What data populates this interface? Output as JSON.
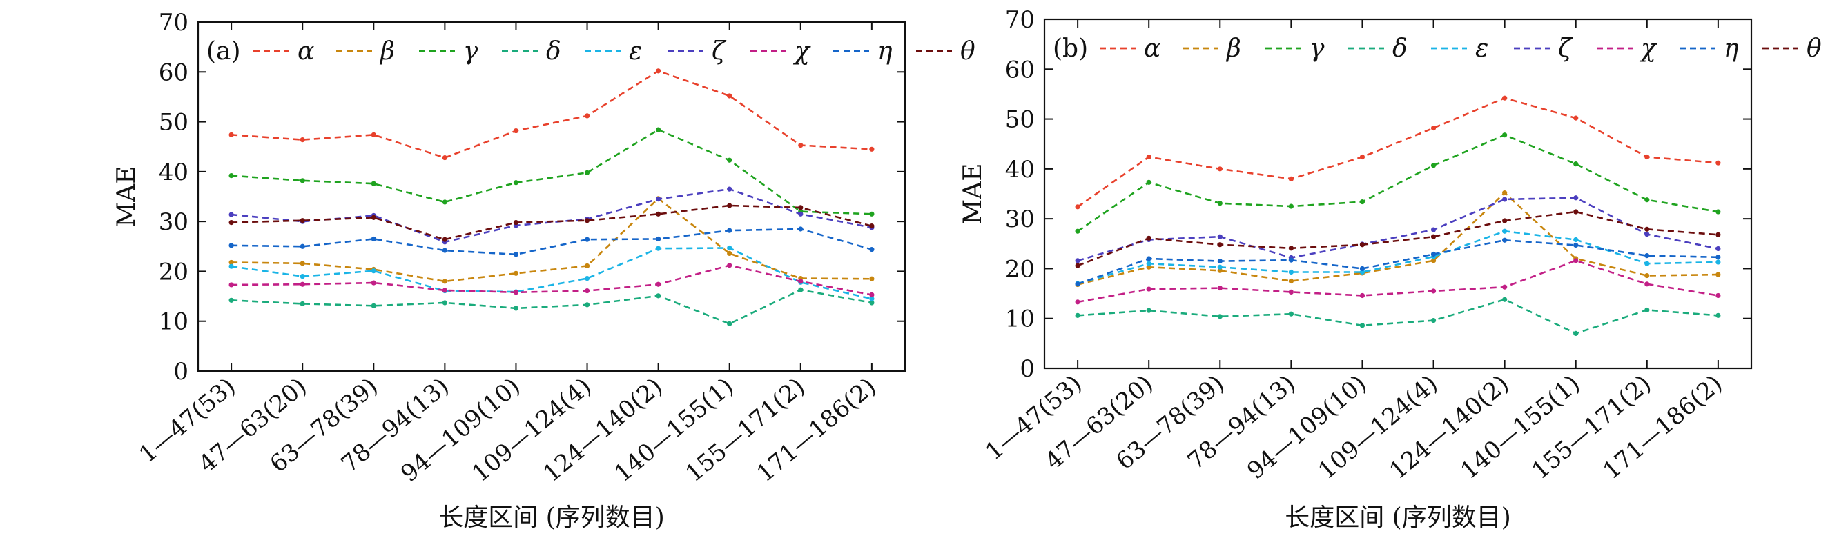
{
  "chart_data": [
    {
      "type": "line",
      "panel_label": "(a)",
      "xlabel": "长度区间 (序列数目)",
      "ylabel": "MAE",
      "ylim": [
        0,
        70
      ],
      "yticks": [
        0,
        10,
        20,
        30,
        40,
        50,
        60,
        70
      ],
      "grid": false,
      "legend_position": "top",
      "categories": [
        "1—47(53)",
        "47—63(20)",
        "63—78(39)",
        "78—94(13)",
        "94—109(10)",
        "109—124(4)",
        "124—140(2)",
        "140—155(1)",
        "155—171(2)",
        "171—186(2)"
      ],
      "series": [
        {
          "name": "α",
          "color": "#e8412c",
          "values": [
            47.4,
            46.4,
            47.4,
            42.8,
            48.2,
            51.2,
            60.2,
            55.2,
            45.3,
            44.5
          ]
        },
        {
          "name": "β",
          "color": "#c8860e",
          "values": [
            21.8,
            21.6,
            20.4,
            18.0,
            19.6,
            21.1,
            34.6,
            23.6,
            18.6,
            18.5
          ]
        },
        {
          "name": "γ",
          "color": "#1fa31f",
          "values": [
            39.2,
            38.2,
            37.6,
            33.9,
            37.8,
            39.8,
            48.4,
            42.3,
            32.0,
            31.5
          ]
        },
        {
          "name": "δ",
          "color": "#1aab7c",
          "values": [
            14.2,
            13.5,
            13.1,
            13.7,
            12.6,
            13.3,
            15.1,
            9.5,
            16.3,
            13.7
          ]
        },
        {
          "name": "ε",
          "color": "#1ab4e6",
          "values": [
            21.0,
            19.0,
            20.1,
            16.1,
            15.9,
            18.6,
            24.6,
            24.7,
            17.8,
            14.5
          ]
        },
        {
          "name": "ζ",
          "color": "#4b3fbf",
          "values": [
            31.4,
            30.0,
            31.2,
            25.9,
            29.2,
            30.5,
            34.5,
            36.5,
            31.5,
            28.8
          ]
        },
        {
          "name": "χ",
          "color": "#c21f86",
          "values": [
            17.3,
            17.4,
            17.7,
            16.2,
            15.8,
            16.1,
            17.4,
            21.2,
            18.0,
            15.3
          ]
        },
        {
          "name": "η",
          "color": "#1565c9",
          "values": [
            25.2,
            25.0,
            26.5,
            24.2,
            23.4,
            26.4,
            26.5,
            28.2,
            28.5,
            24.4
          ]
        },
        {
          "name": "θ",
          "color": "#6b0d0d",
          "values": [
            29.8,
            30.2,
            30.8,
            26.4,
            29.8,
            30.2,
            31.5,
            33.2,
            32.8,
            29.1
          ]
        }
      ]
    },
    {
      "type": "line",
      "panel_label": "(b)",
      "xlabel": "长度区间 (序列数目)",
      "ylabel": "MAE",
      "ylim": [
        0,
        70
      ],
      "yticks": [
        0,
        10,
        20,
        30,
        40,
        50,
        60,
        70
      ],
      "grid": false,
      "legend_position": "top",
      "categories": [
        "1—47(53)",
        "47—63(20)",
        "63—78(39)",
        "78—94(13)",
        "94—109(10)",
        "109—124(4)",
        "124—140(2)",
        "140—155(1)",
        "155—171(2)",
        "171—186(2)"
      ],
      "series": [
        {
          "name": "α",
          "color": "#e8412c",
          "values": [
            32.4,
            42.4,
            40.0,
            38.0,
            42.4,
            48.2,
            54.2,
            50.2,
            42.4,
            41.2
          ]
        },
        {
          "name": "β",
          "color": "#c8860e",
          "values": [
            16.8,
            20.3,
            19.6,
            17.5,
            19.1,
            21.6,
            35.2,
            22.0,
            18.6,
            18.8
          ]
        },
        {
          "name": "γ",
          "color": "#1fa31f",
          "values": [
            27.5,
            37.3,
            33.1,
            32.5,
            33.4,
            40.7,
            46.8,
            41.0,
            33.8,
            31.4
          ]
        },
        {
          "name": "δ",
          "color": "#1aab7c",
          "values": [
            10.6,
            11.6,
            10.4,
            10.9,
            8.6,
            9.6,
            13.8,
            7.0,
            11.7,
            10.6
          ]
        },
        {
          "name": "ε",
          "color": "#1ab4e6",
          "values": [
            17.0,
            21.0,
            20.3,
            19.3,
            19.3,
            22.4,
            27.5,
            25.8,
            21.0,
            21.3
          ]
        },
        {
          "name": "ζ",
          "color": "#4b3fbf",
          "values": [
            21.6,
            25.8,
            26.4,
            22.2,
            24.9,
            27.8,
            33.9,
            34.2,
            26.9,
            24.0
          ]
        },
        {
          "name": "χ",
          "color": "#c21f86",
          "values": [
            13.3,
            15.9,
            16.1,
            15.3,
            14.6,
            15.5,
            16.3,
            21.6,
            16.9,
            14.6
          ]
        },
        {
          "name": "η",
          "color": "#1565c9",
          "values": [
            16.9,
            22.0,
            21.5,
            21.7,
            20.0,
            22.9,
            25.7,
            24.7,
            22.6,
            22.3
          ]
        },
        {
          "name": "θ",
          "color": "#6b0d0d",
          "values": [
            20.6,
            26.1,
            24.8,
            24.1,
            24.8,
            26.4,
            29.6,
            31.4,
            27.9,
            26.8
          ]
        }
      ]
    }
  ]
}
